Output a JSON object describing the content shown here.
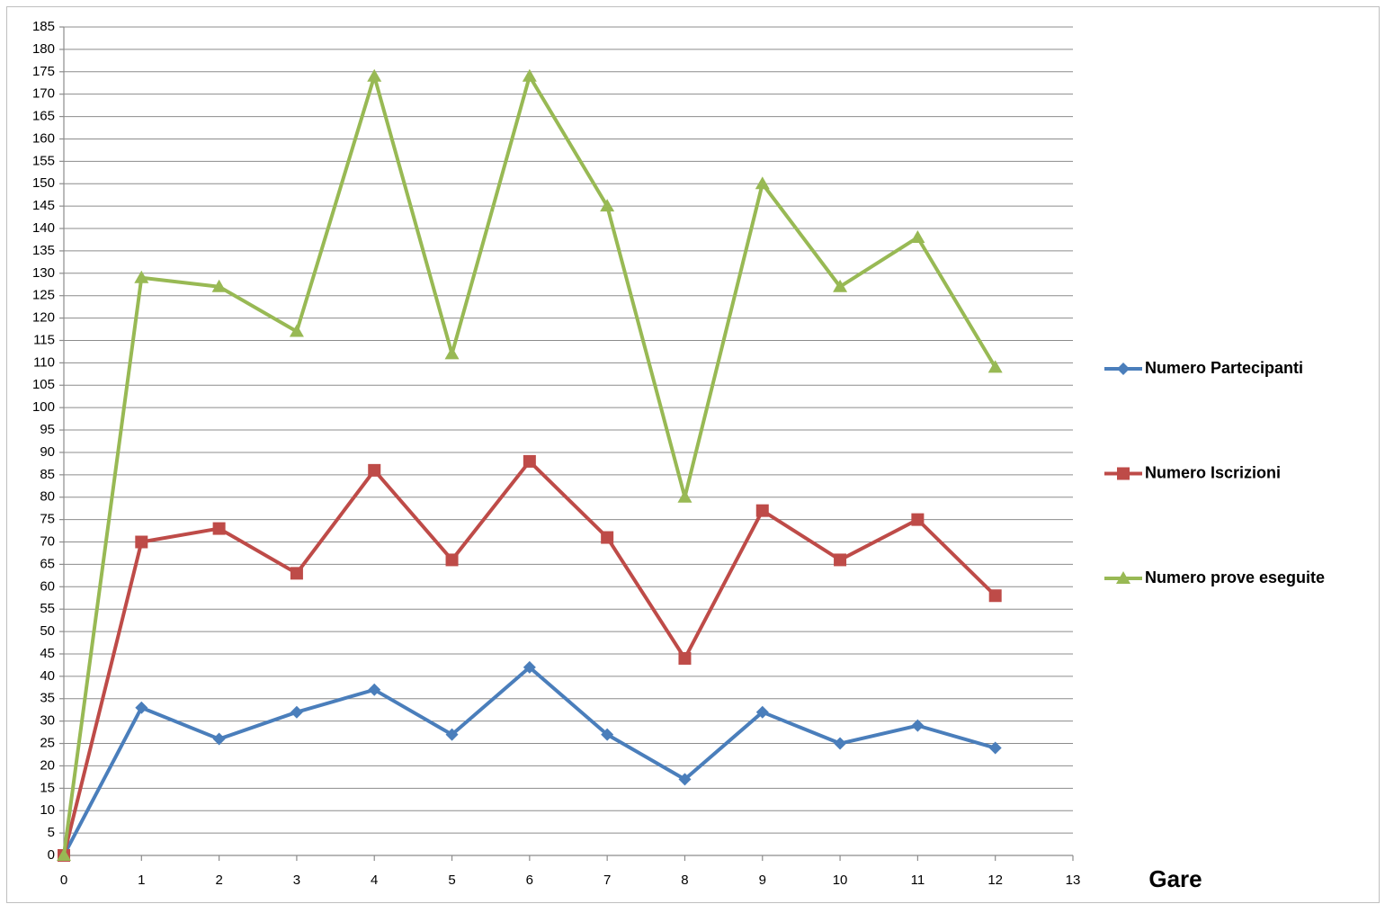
{
  "chart_data": {
    "type": "line",
    "x_label": "Gare",
    "x": [
      0,
      1,
      2,
      3,
      4,
      5,
      6,
      7,
      8,
      9,
      10,
      11,
      12
    ],
    "series": [
      {
        "name": "Numero Partecipanti",
        "color": "#4a7ebb",
        "marker": "diamond",
        "values": [
          0,
          33,
          26,
          32,
          37,
          27,
          42,
          27,
          17,
          32,
          25,
          29,
          24
        ]
      },
      {
        "name": "Numero Iscrizioni",
        "color": "#be4b48",
        "marker": "square",
        "values": [
          0,
          70,
          73,
          63,
          86,
          66,
          88,
          71,
          44,
          77,
          66,
          75,
          58
        ]
      },
      {
        "name": "Numero prove eseguite",
        "color": "#98b954",
        "marker": "triangle",
        "values": [
          0,
          129,
          127,
          117,
          174,
          112,
          174,
          145,
          80,
          150,
          127,
          138,
          109
        ]
      }
    ],
    "xlim": [
      0,
      13
    ],
    "xticks": [
      0,
      1,
      2,
      3,
      4,
      5,
      6,
      7,
      8,
      9,
      10,
      11,
      12,
      13
    ],
    "ylim": [
      0,
      185
    ],
    "yticks": [
      0,
      5,
      10,
      15,
      20,
      25,
      30,
      35,
      40,
      45,
      50,
      55,
      60,
      65,
      70,
      75,
      80,
      85,
      90,
      95,
      100,
      105,
      110,
      115,
      120,
      125,
      130,
      135,
      140,
      145,
      150,
      155,
      160,
      165,
      170,
      175,
      180,
      185
    ],
    "grid": true,
    "legend": "right"
  }
}
